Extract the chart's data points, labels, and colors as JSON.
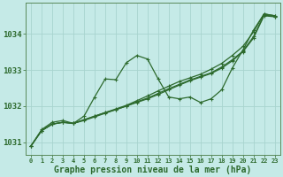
{
  "background_color": "#c5eae7",
  "grid_color": "#a8d4cf",
  "line_color": "#2d6a2d",
  "marker_color": "#2d6a2d",
  "xlabel": "Graphe pression niveau de la mer (hPa)",
  "xlim": [
    -0.5,
    23.5
  ],
  "ylim": [
    1030.65,
    1034.85
  ],
  "yticks": [
    1031,
    1032,
    1033,
    1034
  ],
  "xticks": [
    0,
    1,
    2,
    3,
    4,
    5,
    6,
    7,
    8,
    9,
    10,
    11,
    12,
    13,
    14,
    15,
    16,
    17,
    18,
    19,
    20,
    21,
    22,
    23
  ],
  "series1": [
    1030.9,
    1031.35,
    1031.55,
    1031.6,
    1031.52,
    1031.72,
    1032.25,
    1032.75,
    1032.73,
    1033.2,
    1033.4,
    1033.3,
    1032.75,
    1032.25,
    1032.2,
    1032.25,
    1032.1,
    1032.2,
    1032.45,
    1033.05,
    1033.55,
    1034.1,
    1034.55,
    1034.5
  ],
  "series2": [
    1030.9,
    1031.32,
    1031.5,
    1031.55,
    1031.52,
    1031.62,
    1031.72,
    1031.82,
    1031.92,
    1032.02,
    1032.15,
    1032.28,
    1032.42,
    1032.55,
    1032.68,
    1032.78,
    1032.88,
    1033.02,
    1033.18,
    1033.4,
    1033.65,
    1034.05,
    1034.55,
    1034.5
  ],
  "series3": [
    1030.9,
    1031.32,
    1031.5,
    1031.55,
    1031.52,
    1031.62,
    1031.72,
    1031.82,
    1031.9,
    1032.0,
    1032.12,
    1032.22,
    1032.35,
    1032.48,
    1032.6,
    1032.72,
    1032.82,
    1032.92,
    1033.08,
    1033.28,
    1033.52,
    1033.92,
    1034.52,
    1034.48
  ],
  "series4": [
    1030.9,
    1031.32,
    1031.5,
    1031.55,
    1031.52,
    1031.6,
    1031.7,
    1031.8,
    1031.9,
    1032.0,
    1032.1,
    1032.2,
    1032.32,
    1032.45,
    1032.58,
    1032.7,
    1032.8,
    1032.9,
    1033.05,
    1033.25,
    1033.5,
    1033.88,
    1034.5,
    1034.47
  ]
}
